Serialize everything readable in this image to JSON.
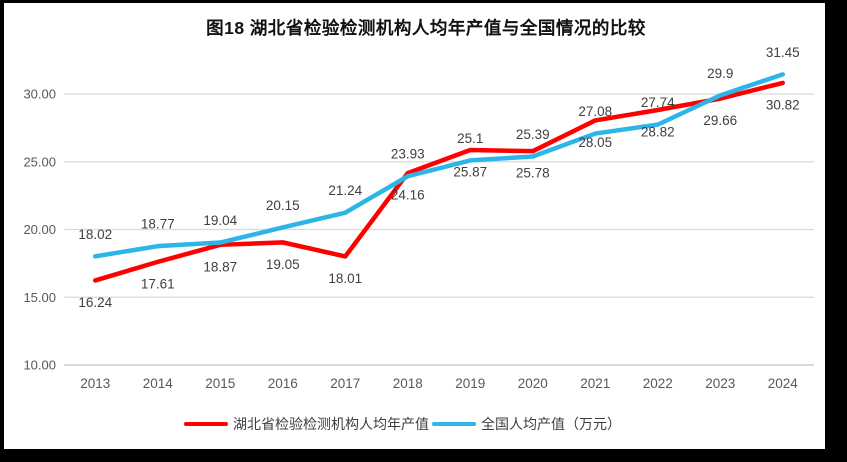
{
  "window": {
    "frame_color": "#000000",
    "canvas_color": "#ffffff"
  },
  "chart_data": {
    "type": "line",
    "title": "图18  湖北省检验检测机构人均年产值与全国情况的比较",
    "categories": [
      "2013",
      "2014",
      "2015",
      "2016",
      "2017",
      "2018",
      "2019",
      "2020",
      "2021",
      "2022",
      "2023",
      "2024"
    ],
    "series": [
      {
        "name": "湖北省检验检测机构人均年产值",
        "color": "#fe0000",
        "label_position": "below",
        "values": [
          16.24,
          17.61,
          18.87,
          19.05,
          18.01,
          24.16,
          25.87,
          25.78,
          28.05,
          28.82,
          29.66,
          30.82
        ],
        "labels": [
          "16.24",
          "17.61",
          "18.87",
          "19.05",
          "18.01",
          "24.16",
          "25.87",
          "25.78",
          "28.05",
          "28.82",
          "29.66",
          "30.82"
        ]
      },
      {
        "name": "全国人均产值（万元）",
        "color": "#2eb5e8",
        "label_position": "above",
        "values": [
          18.02,
          18.77,
          19.04,
          20.15,
          21.24,
          23.93,
          25.1,
          25.39,
          27.08,
          27.74,
          29.9,
          31.45
        ],
        "labels": [
          "18.02",
          "18.77",
          "19.04",
          "20.15",
          "21.24",
          "23.93",
          "25.1",
          "25.39",
          "27.08",
          "27.74",
          "29.9",
          "31.45"
        ]
      }
    ],
    "y_axis": {
      "ticks": [
        "10.00",
        "15.00",
        "20.00",
        "25.00",
        "30.00"
      ],
      "min": 10,
      "max": 30
    },
    "grid": true,
    "legend_position": "bottom",
    "colors": {
      "gridline": "#d9d9d9",
      "axis_line": "#c3c3c3",
      "axis_text": "#595959",
      "label_text": "#404040"
    }
  }
}
